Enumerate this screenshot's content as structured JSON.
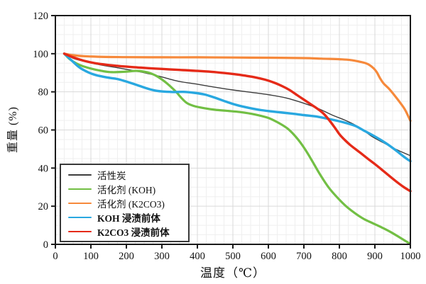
{
  "chart_data": {
    "type": "line",
    "title": "",
    "xlabel": "温度（℃）",
    "ylabel": "重量 (%)",
    "xlim": [
      0,
      1000
    ],
    "ylim": [
      0,
      120
    ],
    "xticks": [
      0,
      100,
      200,
      300,
      400,
      500,
      600,
      700,
      800,
      900,
      1000
    ],
    "yticks": [
      0,
      20,
      40,
      60,
      80,
      100,
      120
    ],
    "grid": "major and minor gridlines on",
    "minor_x_step": 25,
    "minor_y_step": 5,
    "legend_position": "lower-left inside plot",
    "series": [
      {
        "key": "activated-carbon",
        "name": "活性炭",
        "color": "#3d3d3d",
        "width": 1.4,
        "bold_label": false,
        "points": [
          [
            25,
            100
          ],
          [
            50,
            97.6
          ],
          [
            80,
            96
          ],
          [
            110,
            94.7
          ],
          [
            140,
            93.7
          ],
          [
            170,
            92.8
          ],
          [
            200,
            91.8
          ],
          [
            230,
            90.8
          ],
          [
            260,
            89.6
          ],
          [
            290,
            88.3
          ],
          [
            320,
            86.8
          ],
          [
            350,
            85.4
          ],
          [
            400,
            84
          ],
          [
            450,
            82.4
          ],
          [
            500,
            81
          ],
          [
            545,
            79.9
          ],
          [
            600,
            78.5
          ],
          [
            650,
            76.8
          ],
          [
            700,
            74
          ],
          [
            740,
            71.3
          ],
          [
            780,
            67.8
          ],
          [
            820,
            64.8
          ],
          [
            855,
            61.5
          ],
          [
            890,
            56.8
          ],
          [
            925,
            53.2
          ],
          [
            960,
            49.8
          ],
          [
            1000,
            46.5
          ]
        ]
      },
      {
        "key": "activator-koh",
        "name": "活化剂 (KOH)",
        "color": "#72bf44",
        "width": 3.2,
        "bold_label": false,
        "points": [
          [
            25,
            100
          ],
          [
            40,
            97.2
          ],
          [
            60,
            94.8
          ],
          [
            80,
            93.3
          ],
          [
            100,
            92.2
          ],
          [
            130,
            91
          ],
          [
            160,
            90.3
          ],
          [
            200,
            90.6
          ],
          [
            230,
            91
          ],
          [
            260,
            90.2
          ],
          [
            280,
            88.8
          ],
          [
            300,
            86.5
          ],
          [
            320,
            83.5
          ],
          [
            340,
            80
          ],
          [
            355,
            76.8
          ],
          [
            370,
            74.2
          ],
          [
            390,
            72.6
          ],
          [
            420,
            71.4
          ],
          [
            450,
            70.6
          ],
          [
            480,
            70.1
          ],
          [
            520,
            69.4
          ],
          [
            560,
            68.2
          ],
          [
            600,
            66.3
          ],
          [
            630,
            63.6
          ],
          [
            655,
            60.6
          ],
          [
            680,
            55.8
          ],
          [
            700,
            50.8
          ],
          [
            720,
            44.8
          ],
          [
            745,
            36.8
          ],
          [
            770,
            29.8
          ],
          [
            795,
            24.4
          ],
          [
            820,
            19.8
          ],
          [
            845,
            16.2
          ],
          [
            870,
            13.2
          ],
          [
            895,
            11
          ],
          [
            920,
            8.8
          ],
          [
            945,
            6.4
          ],
          [
            970,
            3.6
          ],
          [
            998,
            0.4
          ]
        ]
      },
      {
        "key": "activator-k2co3",
        "name": "活化剂 (K2CO3)",
        "color": "#f6893b",
        "width": 3.2,
        "bold_label": false,
        "points": [
          [
            25,
            100
          ],
          [
            50,
            99.2
          ],
          [
            80,
            98.7
          ],
          [
            120,
            98.4
          ],
          [
            200,
            98.2
          ],
          [
            300,
            98.1
          ],
          [
            400,
            98.1
          ],
          [
            500,
            98
          ],
          [
            600,
            97.9
          ],
          [
            700,
            97.7
          ],
          [
            750,
            97.4
          ],
          [
            800,
            97.1
          ],
          [
            830,
            96.7
          ],
          [
            860,
            95.7
          ],
          [
            880,
            94.6
          ],
          [
            895,
            92.6
          ],
          [
            905,
            90.4
          ],
          [
            915,
            87
          ],
          [
            925,
            84.3
          ],
          [
            940,
            81.6
          ],
          [
            955,
            78.2
          ],
          [
            970,
            74.6
          ],
          [
            985,
            70.6
          ],
          [
            1000,
            64.8
          ]
        ]
      },
      {
        "key": "koh-impregnated-precursor",
        "name": "KOH 浸渍前体",
        "color": "#29a8e0",
        "width": 3.4,
        "bold_label": true,
        "points": [
          [
            25,
            100
          ],
          [
            45,
            96.6
          ],
          [
            65,
            93.2
          ],
          [
            85,
            90.9
          ],
          [
            105,
            89.3
          ],
          [
            125,
            88.3
          ],
          [
            150,
            87.4
          ],
          [
            175,
            86.7
          ],
          [
            200,
            85.4
          ],
          [
            225,
            83.9
          ],
          [
            250,
            82.3
          ],
          [
            275,
            80.9
          ],
          [
            300,
            80.2
          ],
          [
            330,
            79.9
          ],
          [
            360,
            80
          ],
          [
            390,
            79.5
          ],
          [
            420,
            78.6
          ],
          [
            450,
            76.9
          ],
          [
            480,
            74.9
          ],
          [
            510,
            73.1
          ],
          [
            545,
            71.6
          ],
          [
            580,
            70.4
          ],
          [
            620,
            69.5
          ],
          [
            660,
            68.7
          ],
          [
            700,
            67.8
          ],
          [
            740,
            66.9
          ],
          [
            780,
            65.4
          ],
          [
            820,
            63.6
          ],
          [
            845,
            62.1
          ],
          [
            870,
            59.6
          ],
          [
            900,
            56.6
          ],
          [
            930,
            53.2
          ],
          [
            960,
            49.2
          ],
          [
            980,
            46.2
          ],
          [
            1000,
            43.6
          ]
        ]
      },
      {
        "key": "k2co3-impregnated-precursor",
        "name": "K2CO3 浸渍前体",
        "color": "#e52a18",
        "width": 3.4,
        "bold_label": true,
        "points": [
          [
            25,
            100
          ],
          [
            50,
            98.1
          ],
          [
            80,
            96.3
          ],
          [
            110,
            95.1
          ],
          [
            140,
            94.3
          ],
          [
            170,
            93.7
          ],
          [
            200,
            93.2
          ],
          [
            240,
            92.7
          ],
          [
            280,
            92.2
          ],
          [
            320,
            91.8
          ],
          [
            360,
            91.4
          ],
          [
            400,
            91
          ],
          [
            440,
            90.5
          ],
          [
            480,
            89.8
          ],
          [
            520,
            88.9
          ],
          [
            560,
            87.7
          ],
          [
            590,
            86.4
          ],
          [
            615,
            84.9
          ],
          [
            640,
            82.9
          ],
          [
            660,
            80.9
          ],
          [
            680,
            78.4
          ],
          [
            700,
            75.9
          ],
          [
            720,
            73.4
          ],
          [
            740,
            70.9
          ],
          [
            760,
            67.7
          ],
          [
            785,
            61.8
          ],
          [
            800,
            57.8
          ],
          [
            815,
            54.8
          ],
          [
            830,
            52.2
          ],
          [
            845,
            50
          ],
          [
            860,
            47.9
          ],
          [
            880,
            44.9
          ],
          [
            900,
            42.1
          ],
          [
            920,
            39.1
          ],
          [
            940,
            36
          ],
          [
            960,
            33
          ],
          [
            980,
            30.2
          ],
          [
            1000,
            27.9
          ]
        ]
      }
    ],
    "style": {
      "frame_color": "#1a1a1a",
      "major_grid_color": "#d9d9d9",
      "minor_grid_color": "#efefef",
      "background": "#ffffff"
    }
  }
}
